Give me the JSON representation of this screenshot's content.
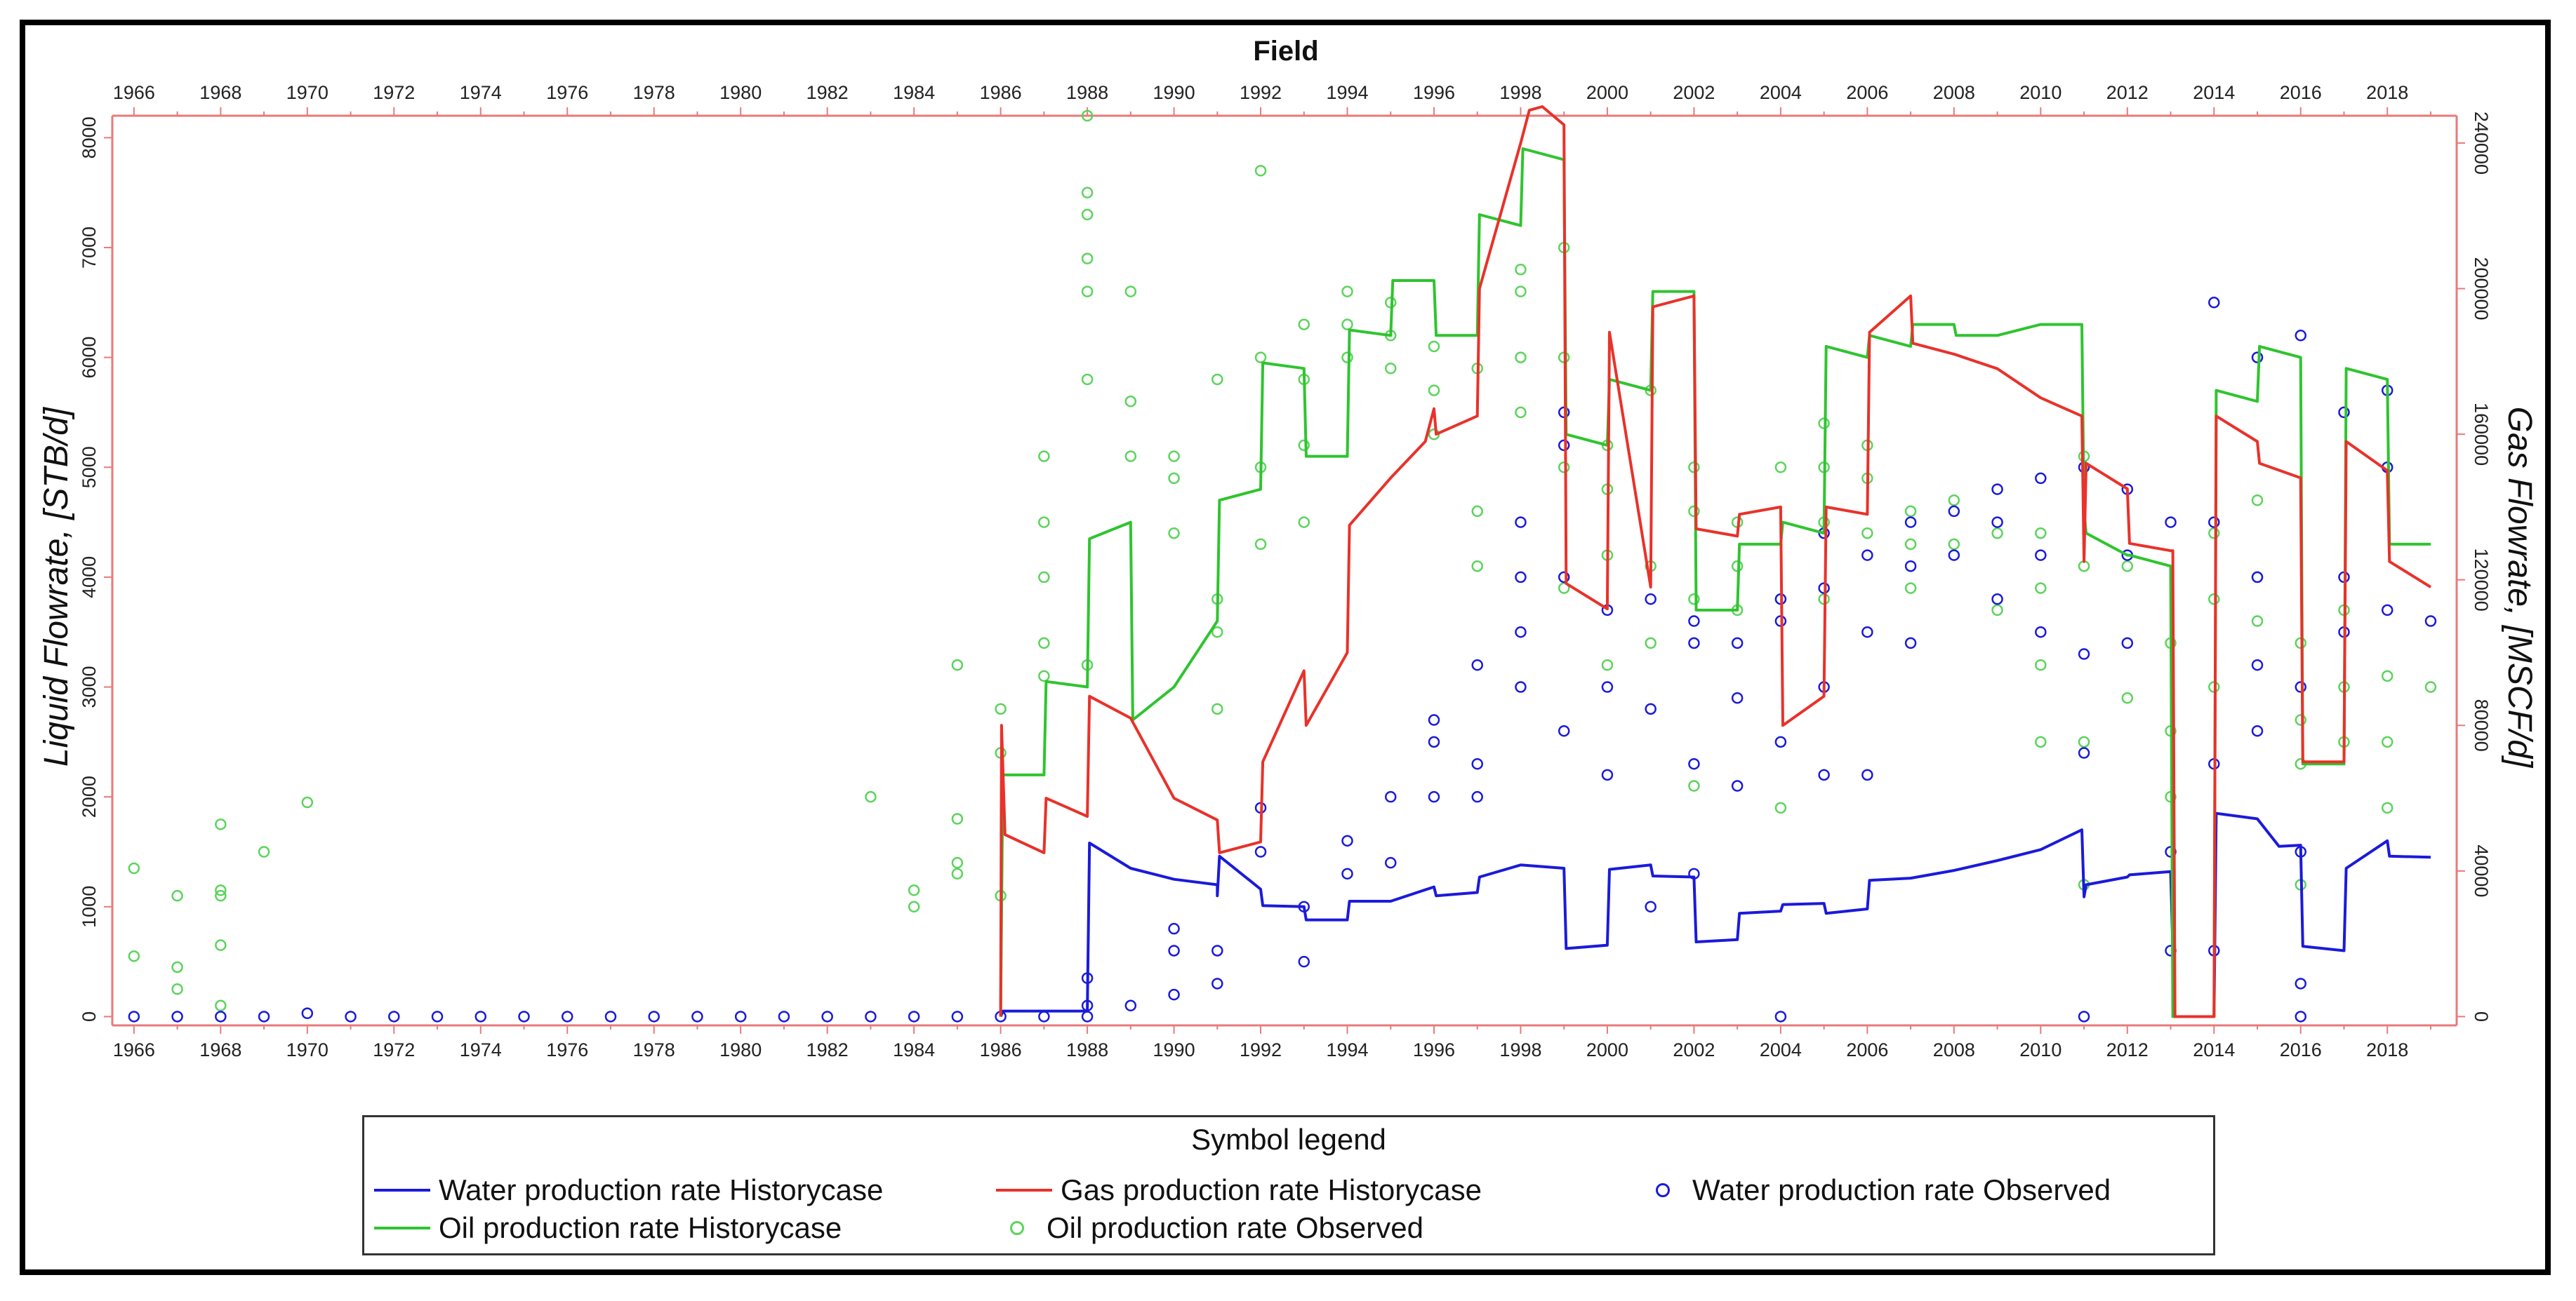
{
  "chart_data": {
    "type": "line",
    "title": "Field",
    "ylabel": "Liquid Flowrate, [STB/d]",
    "y2label": "Gas Flowrate, [MSCF/d]",
    "xlim": [
      1965.5,
      2019.6
    ],
    "ylim": [
      -80,
      8200
    ],
    "y2lim": [
      0,
      247500
    ],
    "x_ticks": [
      1966,
      1968,
      1970,
      1972,
      1974,
      1976,
      1978,
      1980,
      1982,
      1984,
      1986,
      1988,
      1990,
      1992,
      1994,
      1996,
      1998,
      2000,
      2002,
      2004,
      2006,
      2008,
      2010,
      2012,
      2014,
      2016,
      2018
    ],
    "x_tick_labels": [
      "1966",
      "1968",
      "1970",
      "1972",
      "1974",
      "1976",
      "1978",
      "1980",
      "1982",
      "1984",
      "1986",
      "1988",
      "1990",
      "1992",
      "1994",
      "1996",
      "1998",
      "2000",
      "2002",
      "2004",
      "2006",
      "2008",
      "2010",
      "2012",
      "2014",
      "2016",
      "2018"
    ],
    "y_ticks": [
      0,
      1000,
      2000,
      3000,
      4000,
      5000,
      6000,
      7000,
      8000
    ],
    "y_tick_labels": [
      "0",
      "1000",
      "2000",
      "3000",
      "4000",
      "5000",
      "6000",
      "7000",
      "8000"
    ],
    "y2_ticks": [
      0,
      40000,
      80000,
      120000,
      160000,
      200000,
      240000
    ],
    "y2_tick_labels": [
      "0",
      "40000",
      "80000",
      "120000",
      "160000",
      "200000",
      "240000"
    ],
    "colors": {
      "water": "#1a1adb",
      "gas": "#e8322a",
      "oil": "#2fc42f",
      "oil_obs": "#5bd45b",
      "axis_right": "#e87a7a"
    },
    "series": [
      {
        "name": "Water production rate Historycase",
        "axis": "left",
        "style": "line",
        "color": "#1a1adb",
        "x": [
          1986,
          1986.05,
          1987.9,
          1988,
          1988.05,
          1989,
          1990,
          1991,
          1991,
          1991.05,
          1992,
          1992.05,
          1993,
          1993.05,
          1994,
          1994.05,
          1995,
          1996,
          1996.05,
          1997,
          1997.05,
          1998,
          1999,
          1999.05,
          2000,
          2000.05,
          2001,
          2001.05,
          2002,
          2002.05,
          2003,
          2003.05,
          2004,
          2004.05,
          2005,
          2005.05,
          2006,
          2006.05,
          2007,
          2008,
          2009,
          2010,
          2010.95,
          2011,
          2011.05,
          2012,
          2012.05,
          2013,
          2013.05,
          2013.1,
          2014,
          2014.05,
          2015,
          2015.5,
          2016,
          2016.05,
          2017,
          2017.05,
          2018,
          2018.05,
          2019
        ],
        "y": [
          0,
          50,
          50,
          50,
          1580,
          1350,
          1250,
          1200,
          1100,
          1460,
          1160,
          1010,
          1000,
          880,
          880,
          1050,
          1050,
          1180,
          1100,
          1130,
          1270,
          1380,
          1350,
          620,
          650,
          1340,
          1380,
          1280,
          1270,
          680,
          700,
          940,
          960,
          1020,
          1030,
          940,
          980,
          1240,
          1260,
          1330,
          1420,
          1520,
          1700,
          1090,
          1200,
          1270,
          1290,
          1320,
          620,
          0,
          0,
          1850,
          1800,
          1550,
          1560,
          640,
          600,
          1350,
          1600,
          1460,
          1450
        ]
      },
      {
        "name": "Gas production rate Historycase",
        "axis": "right",
        "style": "line",
        "color": "#e8322a",
        "x": [
          1986,
          1986.02,
          1986.1,
          1987,
          1987.05,
          1988,
          1988.05,
          1989,
          1990,
          1991,
          1991.05,
          1992,
          1992.05,
          1993,
          1993.05,
          1994,
          1994.05,
          1995,
          1995.8,
          1996,
          1996.05,
          1997,
          1997.05,
          1998,
          1998.2,
          1998.5,
          1999,
          1999.05,
          2000,
          2000.05,
          2001,
          2001.05,
          2002,
          2002.05,
          2003,
          2003.05,
          2004,
          2004.05,
          2005,
          2005.05,
          2006,
          2006.05,
          2007,
          2007.05,
          2008,
          2009,
          2010,
          2010.95,
          2011,
          2011.05,
          2012,
          2012.05,
          2013,
          2013.05,
          2013.1,
          2014,
          2014.05,
          2015,
          2015.05,
          2016,
          2016.05,
          2017,
          2017.05,
          2018,
          2018.05,
          2019
        ],
        "y": [
          0,
          80000,
          50000,
          45000,
          60000,
          55000,
          88000,
          82000,
          60000,
          54000,
          45000,
          48000,
          70000,
          95000,
          80000,
          100000,
          135000,
          148000,
          158000,
          167000,
          160000,
          165000,
          200000,
          240000,
          249000,
          250000,
          245000,
          119000,
          112000,
          188000,
          118000,
          195000,
          198000,
          134000,
          132000,
          138000,
          140000,
          80000,
          88000,
          140000,
          138000,
          188000,
          198000,
          185000,
          182000,
          178000,
          170000,
          165000,
          125000,
          152000,
          145000,
          130000,
          128000,
          128000,
          0,
          0,
          165000,
          158000,
          152000,
          148000,
          70000,
          70000,
          158000,
          150000,
          125000,
          118000
        ]
      },
      {
        "name": "Oil production rate Historycase",
        "axis": "left",
        "style": "line",
        "color": "#2fc42f",
        "x": [
          1986,
          1986.05,
          1987,
          1987.05,
          1988,
          1988.05,
          1989,
          1989.05,
          1990,
          1991,
          1991.05,
          1992,
          1992.05,
          1993,
          1993.05,
          1994,
          1994.05,
          1995,
          1995.05,
          1996,
          1996.05,
          1997,
          1997.05,
          1998,
          1998.05,
          1999,
          1999.05,
          2000,
          2000.05,
          2001,
          2001.05,
          2002,
          2002.05,
          2003,
          2003.05,
          2004,
          2004.05,
          2005,
          2005.05,
          2006,
          2006.05,
          2007,
          2007.05,
          2008,
          2008.05,
          2009,
          2010,
          2010.95,
          2011,
          2011.05,
          2012,
          2012.05,
          2013,
          2013.05,
          2013.1,
          2014,
          2014.05,
          2015,
          2015.05,
          2016,
          2016.05,
          2017,
          2017.05,
          2018,
          2018.05,
          2019
        ],
        "y": [
          0,
          2200,
          2200,
          3050,
          3000,
          4350,
          4500,
          2700,
          3000,
          3600,
          4700,
          4800,
          5950,
          5900,
          5100,
          5100,
          6250,
          6200,
          6700,
          6700,
          6200,
          6200,
          7300,
          7200,
          7900,
          7800,
          5300,
          5200,
          5800,
          5700,
          6600,
          6600,
          3700,
          3700,
          4300,
          4300,
          4500,
          4400,
          6100,
          6000,
          6200,
          6100,
          6300,
          6300,
          6200,
          6200,
          6300,
          6300,
          4600,
          4400,
          4200,
          4200,
          4100,
          0,
          0,
          0,
          5700,
          5600,
          6100,
          6000,
          2300,
          2300,
          5900,
          5800,
          4300,
          4300
        ]
      },
      {
        "name": "Water production rate Observed",
        "axis": "left",
        "style": "scatter",
        "color": "#1a1adb",
        "x": [
          1966,
          1967,
          1968,
          1969,
          1970,
          1971,
          1972,
          1973,
          1974,
          1975,
          1976,
          1977,
          1978,
          1979,
          1980,
          1981,
          1982,
          1983,
          1984,
          1985,
          1986,
          1987,
          1988,
          1988,
          1988,
          1989,
          1990,
          1990,
          1990,
          1991,
          1991,
          1992,
          1992,
          1993,
          1993,
          1994,
          1994,
          1995,
          1995,
          1996,
          1996,
          1996,
          1997,
          1997,
          1997,
          1998,
          1998,
          1998,
          1998,
          1999,
          1999,
          1999,
          1999,
          2000,
          2000,
          2000,
          2001,
          2001,
          2001,
          2002,
          2002,
          2002,
          2002,
          2003,
          2003,
          2003,
          2004,
          2004,
          2004,
          2004,
          2005,
          2005,
          2005,
          2005,
          2006,
          2006,
          2006,
          2007,
          2007,
          2007,
          2008,
          2008,
          2009,
          2009,
          2009,
          2010,
          2010,
          2010,
          2011,
          2011,
          2011,
          2011,
          2012,
          2012,
          2012,
          2013,
          2013,
          2013,
          2014,
          2014,
          2014,
          2014,
          2015,
          2015,
          2015,
          2015,
          2016,
          2016,
          2016,
          2016,
          2016,
          2017,
          2017,
          2017,
          2018,
          2018,
          2018,
          2019
        ],
        "y": [
          0,
          0,
          0,
          0,
          30,
          0,
          0,
          0,
          0,
          0,
          0,
          0,
          0,
          0,
          0,
          0,
          0,
          0,
          0,
          0,
          0,
          0,
          0,
          100,
          350,
          100,
          200,
          600,
          800,
          300,
          600,
          1500,
          1900,
          500,
          1000,
          1300,
          1600,
          1400,
          2000,
          2000,
          2500,
          2700,
          2000,
          2300,
          3200,
          3000,
          3500,
          4000,
          4500,
          2600,
          4000,
          5200,
          5500,
          2200,
          3000,
          3700,
          1000,
          2800,
          3800,
          1300,
          2300,
          3400,
          3600,
          2100,
          2900,
          3400,
          0,
          2500,
          3600,
          3800,
          2200,
          3000,
          3900,
          4400,
          2200,
          3500,
          4200,
          3400,
          4100,
          4500,
          4200,
          4600,
          3800,
          4500,
          4800,
          3500,
          4200,
          4900,
          0,
          2400,
          3300,
          5000,
          3400,
          4200,
          4800,
          600,
          1500,
          4500,
          600,
          2300,
          4500,
          6500,
          2600,
          3200,
          4000,
          6000,
          0,
          300,
          1500,
          3000,
          6200,
          3500,
          4000,
          5500,
          3700,
          5000,
          5700,
          3600
        ]
      },
      {
        "name": "Oil production rate Observed",
        "axis": "left",
        "style": "scatter",
        "color": "#5bd45b",
        "x": [
          1966,
          1966,
          1967,
          1967,
          1967,
          1968,
          1968,
          1968,
          1968,
          1968,
          1969,
          1970,
          1983,
          1984,
          1984,
          1985,
          1985,
          1985,
          1985,
          1986,
          1986,
          1986,
          1987,
          1987,
          1987,
          1987,
          1987,
          1988,
          1988,
          1988,
          1988,
          1988,
          1988,
          1988,
          1989,
          1989,
          1989,
          1990,
          1990,
          1990,
          1991,
          1991,
          1991,
          1991,
          1992,
          1992,
          1992,
          1992,
          1993,
          1993,
          1993,
          1993,
          1994,
          1994,
          1994,
          1995,
          1995,
          1995,
          1996,
          1996,
          1996,
          1997,
          1997,
          1997,
          1998,
          1998,
          1998,
          1998,
          1999,
          1999,
          1999,
          1999,
          2000,
          2000,
          2000,
          2000,
          2001,
          2001,
          2001,
          2002,
          2002,
          2002,
          2002,
          2003,
          2003,
          2003,
          2004,
          2004,
          2004,
          2005,
          2005,
          2005,
          2005,
          2006,
          2006,
          2006,
          2007,
          2007,
          2007,
          2008,
          2008,
          2009,
          2009,
          2010,
          2010,
          2010,
          2010,
          2011,
          2011,
          2011,
          2011,
          2012,
          2012,
          2013,
          2013,
          2013,
          2014,
          2014,
          2014,
          2015,
          2015,
          2015,
          2016,
          2016,
          2016,
          2016,
          2017,
          2017,
          2017,
          2018,
          2018,
          2018,
          2019
        ],
        "y": [
          1350,
          550,
          1100,
          450,
          250,
          1750,
          1150,
          1100,
          650,
          100,
          1500,
          1950,
          2000,
          1000,
          1150,
          1800,
          1400,
          1300,
          3200,
          1100,
          2400,
          2800,
          3100,
          3400,
          4000,
          4500,
          5100,
          3200,
          5800,
          6600,
          6900,
          7300,
          7500,
          8200,
          5100,
          5600,
          6600,
          4400,
          4900,
          5100,
          2800,
          3500,
          3800,
          5800,
          4300,
          5000,
          6000,
          7700,
          4500,
          5200,
          5800,
          6300,
          6000,
          6300,
          6600,
          5900,
          6200,
          6500,
          5300,
          5700,
          6100,
          4100,
          4600,
          5900,
          5500,
          6000,
          6600,
          6800,
          3900,
          5000,
          6000,
          7000,
          3200,
          4200,
          4800,
          5200,
          3400,
          4100,
          5700,
          2100,
          3800,
          4600,
          5000,
          3700,
          4100,
          4500,
          1900,
          3800,
          5000,
          3800,
          4500,
          5000,
          5400,
          4400,
          4900,
          5200,
          3900,
          4300,
          4600,
          4300,
          4700,
          3700,
          4400,
          2500,
          3200,
          3900,
          4400,
          1200,
          2500,
          4100,
          5100,
          2900,
          4100,
          2000,
          2600,
          3400,
          3000,
          3800,
          4400,
          3600,
          4000,
          4700,
          1200,
          2300,
          2700,
          3400,
          2500,
          3000,
          3700,
          1900,
          2500,
          3100,
          3000
        ]
      }
    ]
  },
  "legend": {
    "title": "Symbol legend",
    "items": [
      {
        "label": "Water production rate Historycase",
        "kind": "line",
        "color": "#1a1adb"
      },
      {
        "label": "Gas production rate Historycase",
        "kind": "line",
        "color": "#e8322a"
      },
      {
        "label": "Water production rate Observed",
        "kind": "circle",
        "color": "#1a1adb"
      },
      {
        "label": "Oil production rate Historycase",
        "kind": "line",
        "color": "#2fc42f"
      },
      {
        "label": "Oil production rate Observed",
        "kind": "circle",
        "color": "#5bd45b"
      }
    ]
  }
}
